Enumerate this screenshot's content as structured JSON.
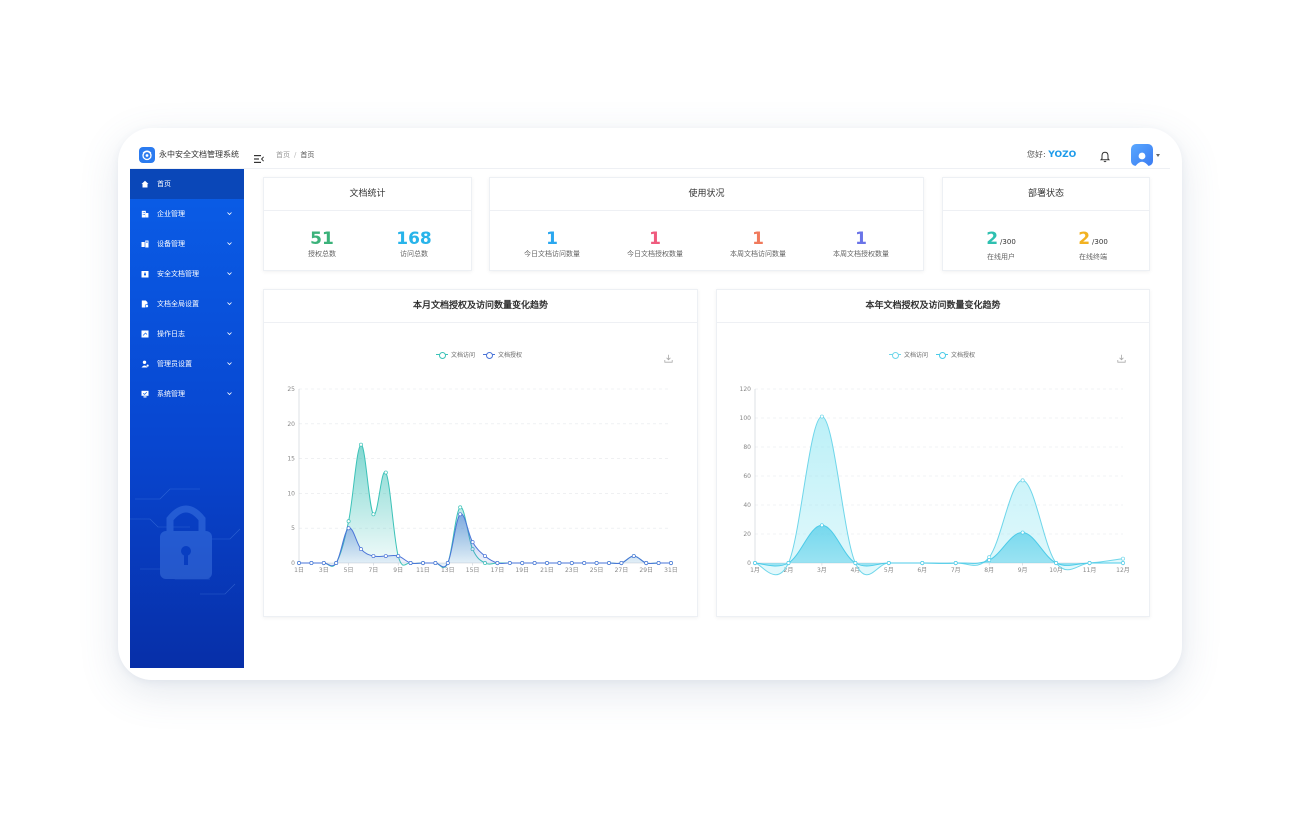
{
  "app": {
    "title": "永中安全文档管理系统",
    "greeting": "您好:",
    "user": "YOZO"
  },
  "breadcrumb": [
    "首页",
    "首页"
  ],
  "sidebar": {
    "items": [
      {
        "label": "首页",
        "icon": "home-icon",
        "active": true
      },
      {
        "label": "企业管理",
        "icon": "building-icon"
      },
      {
        "label": "设备管理",
        "icon": "device-icon"
      },
      {
        "label": "安全文档管理",
        "icon": "secure-doc-icon"
      },
      {
        "label": "文档全局设置",
        "icon": "doc-settings-icon"
      },
      {
        "label": "操作日志",
        "icon": "log-icon"
      },
      {
        "label": "管理员设置",
        "icon": "admin-icon"
      },
      {
        "label": "系统管理",
        "icon": "system-icon"
      }
    ]
  },
  "doc_stats": {
    "title": "文档统计",
    "items": [
      {
        "value": "51",
        "label": "授权总数",
        "color": "#3bb27a"
      },
      {
        "value": "168",
        "label": "访问总数",
        "color": "#28b4ea"
      }
    ]
  },
  "usage": {
    "title": "使用状况",
    "items": [
      {
        "value": "1",
        "label": "今日文档访问数量",
        "color": "#2aa7ef"
      },
      {
        "value": "1",
        "label": "今日文档授权数量",
        "color": "#ef5b7e"
      },
      {
        "value": "1",
        "label": "本周文档访问数量",
        "color": "#f07a5c"
      },
      {
        "value": "1",
        "label": "本周文档授权数量",
        "color": "#6a74e8"
      }
    ]
  },
  "deploy": {
    "title": "部署状态",
    "items": [
      {
        "value": "2",
        "total": "/300",
        "label": "在线用户",
        "color": "#2ec0b0"
      },
      {
        "value": "2",
        "total": "/300",
        "label": "在线终端",
        "color": "#f2b221"
      }
    ]
  },
  "chart_data": [
    {
      "type": "area",
      "title": "本月文档授权及访问数量变化趋势",
      "x": [
        "1日",
        "2日",
        "3日",
        "4日",
        "5日",
        "6日",
        "7日",
        "8日",
        "9日",
        "10日",
        "11日",
        "12日",
        "13日",
        "14日",
        "15日",
        "16日",
        "17日",
        "18日",
        "19日",
        "20日",
        "21日",
        "22日",
        "23日",
        "24日",
        "25日",
        "26日",
        "27日",
        "28日",
        "29日",
        "30日",
        "31日"
      ],
      "xticks": [
        "1日",
        "3日",
        "5日",
        "7日",
        "9日",
        "11日",
        "13日",
        "15日",
        "17日",
        "19日",
        "21日",
        "23日",
        "25日",
        "27日",
        "29日",
        "31日"
      ],
      "ylim": [
        0,
        25
      ],
      "yticks": [
        0,
        5,
        10,
        15,
        20,
        25
      ],
      "grid": true,
      "legend": "top-center",
      "series": [
        {
          "name": "文档访问",
          "color": "#3cc2b8",
          "values": [
            0,
            0,
            0,
            0,
            6,
            17,
            7,
            13,
            1,
            0,
            0,
            0,
            0,
            8,
            2,
            0,
            0,
            0,
            0,
            0,
            0,
            0,
            0,
            0,
            0,
            0,
            0,
            1,
            0,
            0,
            0
          ]
        },
        {
          "name": "文档授权",
          "color": "#4a74d8",
          "values": [
            0,
            0,
            0,
            0,
            5,
            2,
            1,
            1,
            1,
            0,
            0,
            0,
            0,
            7,
            3,
            1,
            0,
            0,
            0,
            0,
            0,
            0,
            0,
            0,
            0,
            0,
            0,
            1,
            0,
            0,
            0
          ]
        }
      ]
    },
    {
      "type": "area",
      "title": "本年文档授权及访问数量变化趋势",
      "x": [
        "1月",
        "2月",
        "3月",
        "4月",
        "5月",
        "6月",
        "7月",
        "8月",
        "9月",
        "10月",
        "11月",
        "12月"
      ],
      "xticks": [
        "1月",
        "2月",
        "3月",
        "4月",
        "5月",
        "6月",
        "7月",
        "8月",
        "9月",
        "10月",
        "11月",
        "12月"
      ],
      "ylim": [
        0,
        120
      ],
      "yticks": [
        0,
        20,
        40,
        60,
        80,
        100,
        120
      ],
      "grid": true,
      "legend": "top-center",
      "series": [
        {
          "name": "文档访问",
          "color": "#6fd6ea",
          "values": [
            0,
            0,
            101,
            0,
            0,
            0,
            0,
            4,
            57,
            0,
            0,
            3
          ]
        },
        {
          "name": "文档授权",
          "color": "#4ccbe8",
          "values": [
            0,
            0,
            26,
            0,
            0,
            0,
            0,
            2,
            21,
            0,
            0,
            0
          ]
        }
      ]
    }
  ]
}
